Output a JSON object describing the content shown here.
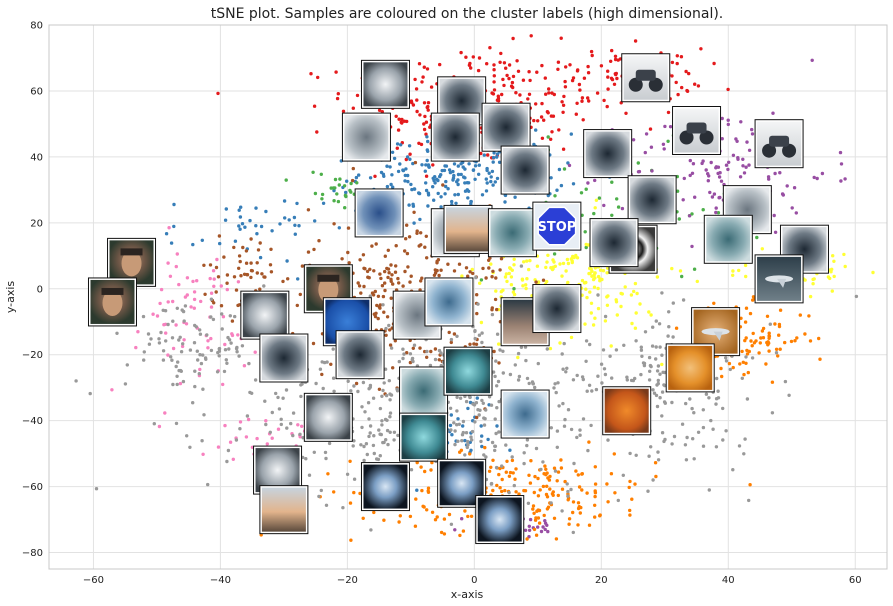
{
  "chart_data": {
    "type": "scatter",
    "title": "tSNE plot. Samples are coloured on the cluster labels (high dimensional).",
    "xlabel": "x-axis",
    "ylabel": "y-axis",
    "xlim": [
      -67,
      65
    ],
    "ylim": [
      -85,
      80
    ],
    "x_ticks": [
      -60,
      -40,
      -20,
      0,
      20,
      40,
      60
    ],
    "y_ticks": [
      -80,
      -60,
      -40,
      -20,
      0,
      20,
      40,
      60,
      80
    ],
    "x_tick_labels": [
      "−60",
      "−40",
      "−20",
      "0",
      "20",
      "40",
      "60"
    ],
    "y_tick_labels": [
      "−80",
      "−60",
      "−40",
      "−20",
      "0",
      "20",
      "40",
      "60",
      "80"
    ],
    "grid": true,
    "legend": "none",
    "clusters": [
      {
        "color": "#e41a1c",
        "center": [
          0,
          55
        ],
        "spread": [
          10,
          9
        ],
        "count": 320
      },
      {
        "color": "#e41a1c",
        "center": [
          26,
          65
        ],
        "spread": [
          5,
          4
        ],
        "count": 90
      },
      {
        "color": "#377eb8",
        "center": [
          -2,
          35
        ],
        "spread": [
          8,
          6
        ],
        "count": 240
      },
      {
        "color": "#377eb8",
        "center": [
          -36,
          18
        ],
        "spread": [
          6,
          5
        ],
        "count": 40
      },
      {
        "color": "#377eb8",
        "center": [
          -2,
          -40
        ],
        "spread": [
          4,
          10
        ],
        "count": 60
      },
      {
        "color": "#4daf4a",
        "center": [
          22,
          22
        ],
        "spread": [
          10,
          10
        ],
        "count": 70
      },
      {
        "color": "#4daf4a",
        "center": [
          -22,
          30
        ],
        "spread": [
          3,
          3
        ],
        "count": 25
      },
      {
        "color": "#984ea3",
        "center": [
          40,
          35
        ],
        "spread": [
          8,
          10
        ],
        "count": 150
      },
      {
        "color": "#984ea3",
        "center": [
          6,
          -72
        ],
        "spread": [
          4,
          2
        ],
        "count": 40
      },
      {
        "color": "#ff7f00",
        "center": [
          5,
          -62
        ],
        "spread": [
          12,
          6
        ],
        "count": 260
      },
      {
        "color": "#ff7f00",
        "center": [
          43,
          -15
        ],
        "spread": [
          5,
          5
        ],
        "count": 100
      },
      {
        "color": "#ffff33",
        "center": [
          15,
          3
        ],
        "spread": [
          7,
          9
        ],
        "count": 220
      },
      {
        "color": "#ffff33",
        "center": [
          50,
          5
        ],
        "spread": [
          5,
          3
        ],
        "count": 60
      },
      {
        "color": "#a65628",
        "center": [
          -10,
          -2
        ],
        "spread": [
          8,
          14
        ],
        "count": 320
      },
      {
        "color": "#a65628",
        "center": [
          -35,
          5
        ],
        "spread": [
          4,
          6
        ],
        "count": 60
      },
      {
        "color": "#f781bf",
        "center": [
          -45,
          -10
        ],
        "spread": [
          7,
          12
        ],
        "count": 70
      },
      {
        "color": "#f781bf",
        "center": [
          -32,
          -45
        ],
        "spread": [
          4,
          3
        ],
        "count": 25
      },
      {
        "color": "#999999",
        "center": [
          -5,
          -35
        ],
        "spread": [
          18,
          15
        ],
        "count": 600
      },
      {
        "color": "#999999",
        "center": [
          30,
          -30
        ],
        "spread": [
          8,
          10
        ],
        "count": 150
      },
      {
        "color": "#999999",
        "center": [
          -45,
          -18
        ],
        "spread": [
          5,
          6
        ],
        "count": 80
      }
    ],
    "thumbnails": [
      {
        "x": -14,
        "y": 62,
        "tone": "gray-light",
        "icon": "blurred-sample-thumbnail"
      },
      {
        "x": -2,
        "y": 57,
        "tone": "gray-dark",
        "icon": "blurred-sample-thumbnail"
      },
      {
        "x": 5,
        "y": 49,
        "tone": "gray-dark",
        "icon": "blurred-sample-thumbnail"
      },
      {
        "x": -17,
        "y": 46,
        "tone": "gray-mid",
        "icon": "blurred-sample-thumbnail"
      },
      {
        "x": -3,
        "y": 46,
        "tone": "gray-dark",
        "icon": "blurred-sample-thumbnail"
      },
      {
        "x": 27,
        "y": 64,
        "tone": "motorbike",
        "icon": "motorcycle-thumbnail"
      },
      {
        "x": 35,
        "y": 48,
        "tone": "motorbike",
        "icon": "motorcycle-thumbnail"
      },
      {
        "x": 48,
        "y": 44,
        "tone": "motorbike",
        "icon": "motorcycle-thumbnail"
      },
      {
        "x": 21,
        "y": 41,
        "tone": "gray-dark",
        "icon": "blurred-sample-thumbnail"
      },
      {
        "x": 8,
        "y": 36,
        "tone": "gray-dark",
        "icon": "blurred-sample-thumbnail"
      },
      {
        "x": 28,
        "y": 27,
        "tone": "gray-dark",
        "icon": "blurred-sample-thumbnail"
      },
      {
        "x": 43,
        "y": 24,
        "tone": "gray-mid",
        "icon": "blurred-sample-thumbnail"
      },
      {
        "x": -15,
        "y": 23,
        "tone": "blue",
        "icon": "blurred-sample-thumbnail"
      },
      {
        "x": -3,
        "y": 17,
        "tone": "gray-mid",
        "icon": "blurred-sample-thumbnail"
      },
      {
        "x": -1,
        "y": 18,
        "tone": "peach",
        "icon": "blurred-sample-thumbnail"
      },
      {
        "x": 6,
        "y": 17,
        "tone": "teal",
        "icon": "blurred-sample-thumbnail"
      },
      {
        "x": 13,
        "y": 19,
        "tone": "stop",
        "icon": "stop-sign-thumbnail",
        "label": "STOP"
      },
      {
        "x": 25,
        "y": 12,
        "tone": "swirl",
        "icon": "swirl-thumbnail"
      },
      {
        "x": 22,
        "y": 14,
        "tone": "gray-dark",
        "icon": "blurred-sample-thumbnail"
      },
      {
        "x": 40,
        "y": 15,
        "tone": "teal",
        "icon": "blurred-sample-thumbnail"
      },
      {
        "x": 52,
        "y": 12,
        "tone": "gray-dark",
        "icon": "blurred-sample-thumbnail"
      },
      {
        "x": 48,
        "y": 3,
        "tone": "airplane",
        "icon": "airplane-thumbnail"
      },
      {
        "x": -54,
        "y": 8,
        "tone": "face",
        "icon": "face-thumbnail"
      },
      {
        "x": -57,
        "y": -4,
        "tone": "face",
        "icon": "face-thumbnail"
      },
      {
        "x": -23,
        "y": 0,
        "tone": "face",
        "icon": "face-thumbnail"
      },
      {
        "x": -20,
        "y": -10,
        "tone": "blue-bright",
        "icon": "blurred-sample-thumbnail"
      },
      {
        "x": -33,
        "y": -8,
        "tone": "gray-light",
        "icon": "blurred-sample-thumbnail"
      },
      {
        "x": -9,
        "y": -8,
        "tone": "gray-mid",
        "icon": "blurred-sample-thumbnail"
      },
      {
        "x": -4,
        "y": -4,
        "tone": "blue-light",
        "icon": "blurred-sample-thumbnail"
      },
      {
        "x": 8,
        "y": -10,
        "tone": "peach-dark",
        "icon": "blurred-sample-thumbnail"
      },
      {
        "x": 13,
        "y": -6,
        "tone": "gray-dark",
        "icon": "blurred-sample-thumbnail"
      },
      {
        "x": 38,
        "y": -13,
        "tone": "airplane-orange",
        "icon": "airplane-thumbnail"
      },
      {
        "x": 34,
        "y": -24,
        "tone": "orange",
        "icon": "blurred-sample-thumbnail"
      },
      {
        "x": -30,
        "y": -21,
        "tone": "gray-dark",
        "icon": "blurred-sample-thumbnail"
      },
      {
        "x": -18,
        "y": -20,
        "tone": "gray-dark",
        "icon": "blurred-sample-thumbnail"
      },
      {
        "x": -8,
        "y": -31,
        "tone": "teal",
        "icon": "blurred-sample-thumbnail"
      },
      {
        "x": -1,
        "y": -25,
        "tone": "teal-bright",
        "icon": "blurred-sample-thumbnail"
      },
      {
        "x": 8,
        "y": -38,
        "tone": "blue-light",
        "icon": "blurred-sample-thumbnail"
      },
      {
        "x": 24,
        "y": -37,
        "tone": "orange-dark",
        "icon": "blurred-sample-thumbnail"
      },
      {
        "x": -23,
        "y": -39,
        "tone": "gray-light",
        "icon": "blurred-sample-thumbnail"
      },
      {
        "x": -8,
        "y": -45,
        "tone": "teal-bright",
        "icon": "blurred-sample-thumbnail"
      },
      {
        "x": -31,
        "y": -55,
        "tone": "gray-light",
        "icon": "blurred-sample-thumbnail"
      },
      {
        "x": -30,
        "y": -67,
        "tone": "peach",
        "icon": "blurred-sample-thumbnail"
      },
      {
        "x": -14,
        "y": -60,
        "tone": "radial-blue",
        "icon": "blurred-sample-thumbnail"
      },
      {
        "x": -2,
        "y": -59,
        "tone": "radial-blue",
        "icon": "blurred-sample-thumbnail"
      },
      {
        "x": 4,
        "y": -70,
        "tone": "radial-blue",
        "icon": "blurred-sample-thumbnail"
      }
    ]
  }
}
